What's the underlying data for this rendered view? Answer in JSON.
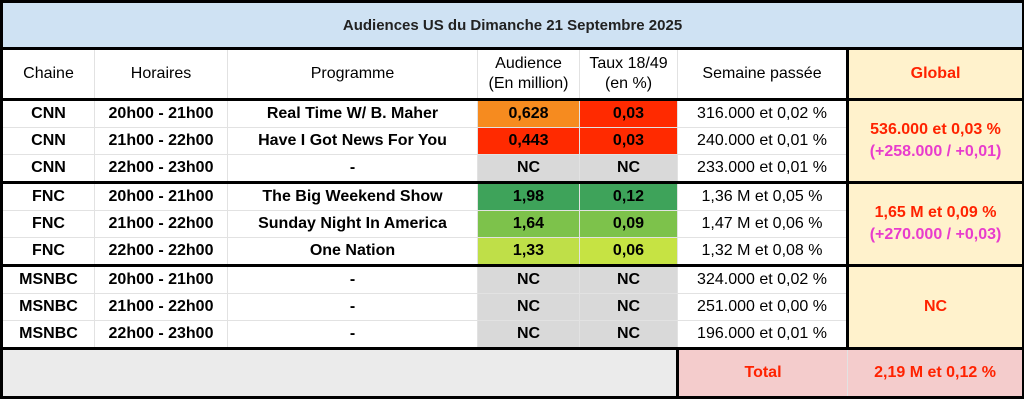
{
  "title": "Audiences US du Dimanche 21 Septembre 2025",
  "headers": {
    "chaine": "Chaine",
    "horaires": "Horaires",
    "programme": "Programme",
    "audience1": "Audience",
    "audience2": "(En million)",
    "taux1": "Taux 18/49",
    "taux2": "(en %)",
    "semaine": "Semaine passée",
    "global": "Global"
  },
  "rows": [
    {
      "chaine": "CNN",
      "horaires": "20h00 - 21h00",
      "programme": "Real Time W/ B. Maher",
      "audience": "0,628",
      "taux": "0,03",
      "semaine": "316.000 et 0,02 %",
      "aud_color": "#f68b1f",
      "taux_color": "#ff2a00"
    },
    {
      "chaine": "CNN",
      "horaires": "21h00 - 22h00",
      "programme": "Have I Got News For You",
      "audience": "0,443",
      "taux": "0,03",
      "semaine": "240.000 et 0,01 %",
      "aud_color": "#ff2a00",
      "taux_color": "#ff2a00"
    },
    {
      "chaine": "CNN",
      "horaires": "22h00 - 23h00",
      "programme": "-",
      "audience": "NC",
      "taux": "NC",
      "semaine": "233.000 et 0,01 %",
      "aud_color": "#d9d9d9",
      "taux_color": "#d9d9d9"
    },
    {
      "chaine": "FNC",
      "horaires": "20h00 - 21h00",
      "programme": "The Big Weekend Show",
      "audience": "1,98",
      "taux": "0,12",
      "semaine": "1,36 M et 0,05 %",
      "aud_color": "#3ea35a",
      "taux_color": "#3ea35a"
    },
    {
      "chaine": "FNC",
      "horaires": "21h00 - 22h00",
      "programme": "Sunday Night In America",
      "audience": "1,64",
      "taux": "0,09",
      "semaine": "1,47 M et 0,06 %",
      "aud_color": "#7dc24b",
      "taux_color": "#7dc24b"
    },
    {
      "chaine": "FNC",
      "horaires": "22h00 - 22h00",
      "programme": "One Nation",
      "audience": "1,33",
      "taux": "0,06",
      "semaine": "1,32 M et 0,08 %",
      "aud_color": "#bfdf48",
      "taux_color": "#c6e343"
    },
    {
      "chaine": "MSNBC",
      "horaires": "20h00 - 21h00",
      "programme": "-",
      "audience": "NC",
      "taux": "NC",
      "semaine": "324.000 et 0,02 %",
      "aud_color": "#d9d9d9",
      "taux_color": "#d9d9d9"
    },
    {
      "chaine": "MSNBC",
      "horaires": "21h00 - 22h00",
      "programme": "-",
      "audience": "NC",
      "taux": "NC",
      "semaine": "251.000 et 0,00 %",
      "aud_color": "#d9d9d9",
      "taux_color": "#d9d9d9"
    },
    {
      "chaine": "MSNBC",
      "horaires": "22h00 - 23h00",
      "programme": "-",
      "audience": "NC",
      "taux": "NC",
      "semaine": "196.000 et 0,01 %",
      "aud_color": "#d9d9d9",
      "taux_color": "#d9d9d9"
    }
  ],
  "globals": [
    {
      "main": "536.000 et 0,03 %",
      "sub": "(+258.000 / +0,01)"
    },
    {
      "main": "1,65 M et 0,09 %",
      "sub": "(+270.000 / +0,03)"
    },
    {
      "main": "NC"
    }
  ],
  "footer": {
    "label": "Total",
    "value": "2,19 M et 0,12 %"
  }
}
